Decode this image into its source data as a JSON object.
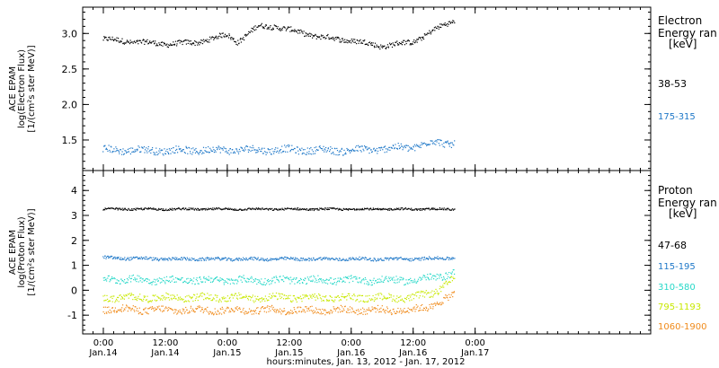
{
  "x_axis": {
    "title": "hours:minutes, Jan. 13, 2012 - Jan. 17, 2012",
    "range": [
      -4,
      106
    ],
    "ticks": [
      {
        "value": 0,
        "time": "0:00",
        "date": "Jan.14"
      },
      {
        "value": 12,
        "time": "12:00",
        "date": "Jan.14"
      },
      {
        "value": 24,
        "time": "0:00",
        "date": "Jan.15"
      },
      {
        "value": 36,
        "time": "12:00",
        "date": "Jan.15"
      },
      {
        "value": 48,
        "time": "0:00",
        "date": "Jan.16"
      },
      {
        "value": 60,
        "time": "12:00",
        "date": "Jan.16"
      },
      {
        "value": 72,
        "time": "0:00",
        "date": "Jan.17"
      }
    ]
  },
  "chart_data": [
    {
      "type": "scatter",
      "ylabel": [
        "ACE EPAM",
        "log(Electron Flux)",
        "[1/(cm²s ster MeV)]"
      ],
      "ylim": [
        1.07,
        3.37
      ],
      "yticks": [
        "1.5",
        "2.0",
        "2.5",
        "3.0"
      ],
      "ytick_values": [
        1.5,
        2.0,
        2.5,
        3.0
      ],
      "legend": {
        "title": [
          "Electron",
          "Energy ran",
          "[keV]"
        ],
        "placement": "right"
      },
      "series": [
        {
          "name": "38-53",
          "color": "#000000",
          "x": [
            0,
            6,
            12,
            18,
            24,
            26,
            30,
            33,
            36,
            42,
            48,
            54,
            60,
            63,
            66,
            68
          ],
          "y": [
            2.92,
            2.88,
            2.85,
            2.87,
            2.98,
            2.88,
            3.1,
            3.1,
            3.05,
            2.95,
            2.9,
            2.82,
            2.88,
            3.0,
            3.12,
            3.18
          ]
        },
        {
          "name": "175-315",
          "color": "#1f78c8",
          "x": [
            0,
            12,
            24,
            36,
            48,
            60,
            64,
            68
          ],
          "y": [
            1.36,
            1.35,
            1.36,
            1.36,
            1.35,
            1.4,
            1.47,
            1.45
          ]
        }
      ]
    },
    {
      "type": "scatter",
      "ylabel": [
        "ACE EPAM",
        "log(Proton Flux)",
        "[1/(cm²s ster MeV)]"
      ],
      "ylim": [
        -1.75,
        4.8
      ],
      "yticks": [
        "-1",
        "0",
        "1",
        "2",
        "3",
        "4"
      ],
      "ytick_values": [
        -1,
        0,
        1,
        2,
        3,
        4
      ],
      "legend": {
        "title": [
          "Proton",
          "Energy ran",
          "[keV]"
        ],
        "placement": "right"
      },
      "series": [
        {
          "name": "47-68",
          "color": "#000000",
          "x": [
            0,
            12,
            24,
            36,
            48,
            60,
            68
          ],
          "y": [
            3.25,
            3.25,
            3.25,
            3.25,
            3.25,
            3.25,
            3.25
          ]
        },
        {
          "name": "115-195",
          "color": "#1f78c8",
          "x": [
            0,
            12,
            24,
            36,
            48,
            60,
            68
          ],
          "y": [
            1.3,
            1.25,
            1.25,
            1.25,
            1.25,
            1.25,
            1.3
          ]
        },
        {
          "name": "310-580",
          "color": "#27d8c8",
          "x": [
            0,
            12,
            24,
            36,
            48,
            60,
            64,
            68
          ],
          "y": [
            0.45,
            0.4,
            0.4,
            0.4,
            0.4,
            0.4,
            0.5,
            0.7
          ]
        },
        {
          "name": "795-1193",
          "color": "#c8e800",
          "x": [
            0,
            12,
            24,
            36,
            48,
            60,
            64,
            68
          ],
          "y": [
            -0.3,
            -0.3,
            -0.3,
            -0.3,
            -0.3,
            -0.3,
            -0.1,
            0.45
          ]
        },
        {
          "name": "1060-1900",
          "color": "#f08a1a",
          "x": [
            0,
            12,
            24,
            36,
            48,
            60,
            64,
            68
          ],
          "y": [
            -0.75,
            -0.8,
            -0.8,
            -0.8,
            -0.8,
            -0.8,
            -0.6,
            -0.2
          ]
        }
      ]
    }
  ]
}
